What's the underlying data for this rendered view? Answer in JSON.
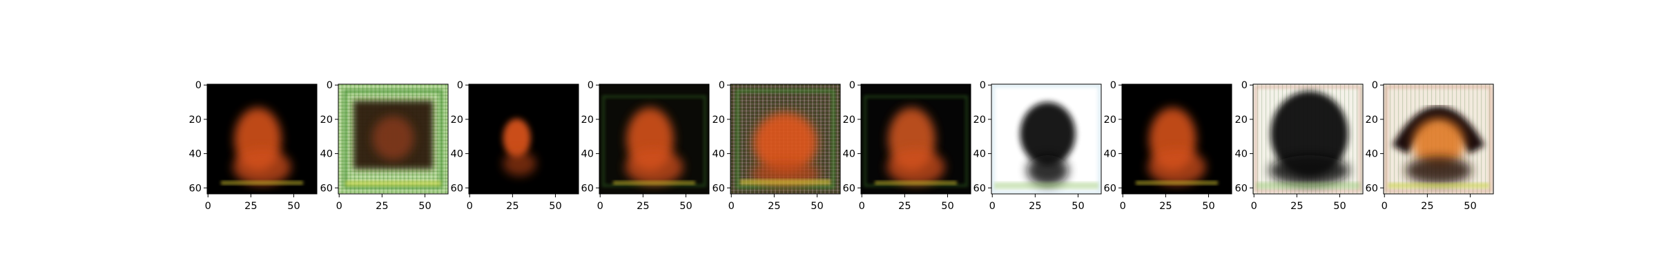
{
  "figure": {
    "panel_count": 10,
    "x_ticks": [
      "0",
      "25",
      "50"
    ],
    "y_ticks": [
      "0",
      "20",
      "40",
      "60"
    ],
    "panels": [
      {
        "id": 1,
        "background": "#000000",
        "frame": "none",
        "subject_color": "#e0561c",
        "subject": "orange-figure"
      },
      {
        "id": 2,
        "background": "#a8d088",
        "frame": "noisy-green",
        "subject_color": "#3a1e10",
        "subject": "dark-square-frame"
      },
      {
        "id": 3,
        "background": "#000000",
        "frame": "none",
        "subject_color": "#e0561c",
        "subject": "small-orange-figure"
      },
      {
        "id": 4,
        "background": "#0a0a06",
        "frame": "faint-green",
        "subject_color": "#e0561c",
        "subject": "orange-figure"
      },
      {
        "id": 5,
        "background": "#4a3a28",
        "frame": "noisy-green",
        "subject_color": "#e0561c",
        "subject": "orange-face"
      },
      {
        "id": 6,
        "background": "#050505",
        "frame": "faint-green",
        "subject_color": "#d85a22",
        "subject": "orange-figure"
      },
      {
        "id": 7,
        "background": "#ffffff",
        "frame": "white",
        "subject_color": "#101010",
        "subject": "dark-head"
      },
      {
        "id": 8,
        "background": "#000000",
        "frame": "none",
        "subject_color": "#e0561c",
        "subject": "orange-figure"
      },
      {
        "id": 9,
        "background": "#f2f0e6",
        "frame": "noisy-light",
        "subject_color": "#0c0c0c",
        "subject": "dark-head"
      },
      {
        "id": 10,
        "background": "#f0e8da",
        "frame": "noisy-light",
        "subject_color": "#e07a28",
        "subject": "orange-with-dark-arch"
      }
    ]
  }
}
